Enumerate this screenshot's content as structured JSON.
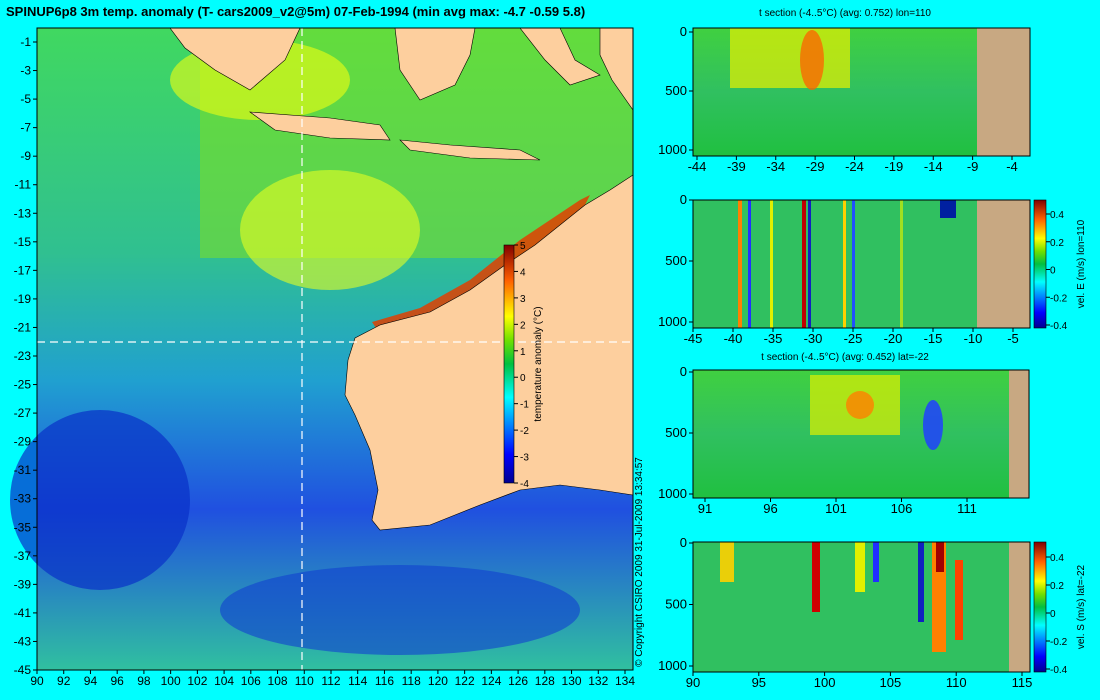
{
  "title": "SPINUP6p8 3m temp. anomaly (T- cars2009_v2@5m) 07-Feb-1994 (min avg max: -4.7 -0.59 5.8)",
  "copyright": "© Copyright CSIRO 2009  31-Jul-2009 13:34:57",
  "colors": {
    "background": "#00ffff",
    "land": "#fdcf9e",
    "section_land": "#c8a882",
    "guide_line": "#ffffff"
  },
  "map": {
    "x_ticks": [
      "90",
      "92",
      "94",
      "96",
      "98",
      "100",
      "102",
      "104",
      "106",
      "108",
      "110",
      "112",
      "114",
      "116",
      "118",
      "120",
      "122",
      "124",
      "126",
      "128",
      "130",
      "132",
      "134"
    ],
    "y_ticks": [
      "-1",
      "-3",
      "-5",
      "-7",
      "-9",
      "-11",
      "-13",
      "-15",
      "-17",
      "-19",
      "-21",
      "-23",
      "-25",
      "-27",
      "-29",
      "-31",
      "-33",
      "-35",
      "-37",
      "-39",
      "-41",
      "-43",
      "-45"
    ],
    "guide_lon": "110",
    "guide_lat": "-22",
    "colorbar": {
      "label": "temperature anomaly (°C)",
      "ticks": [
        "5",
        "4",
        "3",
        "2",
        "1",
        "0",
        "-1",
        "-2",
        "-3",
        "-4"
      ],
      "range": [
        -4,
        5
      ]
    }
  },
  "chart_data": [
    {
      "type": "heatmap",
      "title": "SPINUP6p8 3m temp. anomaly (T- cars2009_v2@5m) 07-Feb-1994 (min avg max: -4.7 -0.59 5.8)",
      "x_range": [
        90,
        135
      ],
      "y_range": [
        -45,
        0
      ],
      "color_range": [
        -4,
        5
      ],
      "colorbar_label": "temperature anomaly (°C)",
      "stats": {
        "min": -4.7,
        "avg": -0.59,
        "max": 5.8
      },
      "date": "07-Feb-1994"
    },
    {
      "type": "heatmap",
      "title": "t section (-4..5°C) (avg: 0.752) lon=110",
      "x_ticks": [
        "-44",
        "-39",
        "-34",
        "-29",
        "-24",
        "-19",
        "-14",
        "-9",
        "-4"
      ],
      "y_ticks": [
        "0",
        "500",
        "1000"
      ],
      "x_range": [
        -45,
        -2
      ],
      "y_range": [
        0,
        1050
      ],
      "avg": 0.752
    },
    {
      "type": "heatmap",
      "title": "",
      "x_ticks": [
        "-45",
        "-40",
        "-35",
        "-30",
        "-25",
        "-20",
        "-15",
        "-10",
        "-5"
      ],
      "y_ticks": [
        "0",
        "500",
        "1000"
      ],
      "x_range": [
        -45,
        -2
      ],
      "y_range": [
        0,
        1050
      ],
      "colorbar_label": "vel. E (m/s) lon=110",
      "colorbar_ticks": [
        "0.4",
        "0.2",
        "0",
        "-0.2",
        "-0.4"
      ]
    },
    {
      "type": "heatmap",
      "title": "t section (-4..5°C) (avg: 0.452) lat=-22",
      "x_ticks": [
        "91",
        "96",
        "101",
        "106",
        "111"
      ],
      "y_ticks": [
        "0",
        "500",
        "1000"
      ],
      "x_range": [
        90,
        115
      ],
      "y_range": [
        0,
        1050
      ],
      "avg": 0.452
    },
    {
      "type": "heatmap",
      "title": "",
      "x_ticks": [
        "90",
        "95",
        "100",
        "105",
        "110",
        "115"
      ],
      "y_ticks": [
        "0",
        "500",
        "1000"
      ],
      "x_range": [
        90,
        115
      ],
      "y_range": [
        0,
        1050
      ],
      "colorbar_label": "vel. S (m/s) lat=-22",
      "colorbar_ticks": [
        "0.4",
        "0.2",
        "0",
        "-0.2",
        "-0.4"
      ]
    }
  ]
}
